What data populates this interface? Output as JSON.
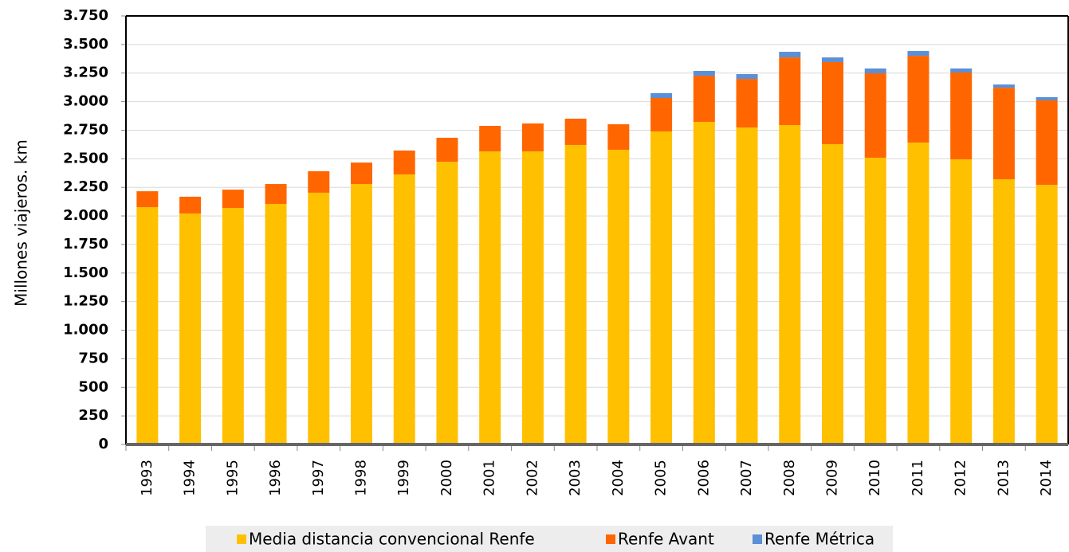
{
  "chart_data": {
    "type": "stacked_bar",
    "y_label": "Millones viajeros. km",
    "categories": [
      "1993",
      "1994",
      "1995",
      "1996",
      "1997",
      "1998",
      "1999",
      "2000",
      "2001",
      "2002",
      "2003",
      "2004",
      "2005",
      "2006",
      "2007",
      "2008",
      "2009",
      "2010",
      "2011",
      "2012",
      "2013",
      "2014"
    ],
    "series": [
      {
        "name": "Media distancia convencional Renfe",
        "color": "#ffc000",
        "values": [
          2077,
          2021,
          2070,
          2105,
          2203,
          2279,
          2363,
          2474,
          2565,
          2565,
          2621,
          2579,
          2739,
          2823,
          2774,
          2795,
          2628,
          2509,
          2642,
          2495,
          2321,
          2272
        ]
      },
      {
        "name": "Renfe Avant",
        "color": "#ff6600",
        "values": [
          139,
          147,
          160,
          174,
          188,
          188,
          209,
          210,
          223,
          244,
          230,
          223,
          293,
          404,
          425,
          592,
          718,
          739,
          759,
          760,
          801,
          739
        ]
      },
      {
        "name": "Renfe Métrica",
        "color": "#5b8fd6",
        "values": [
          0,
          0,
          0,
          0,
          0,
          0,
          0,
          0,
          0,
          0,
          0,
          0,
          42,
          42,
          42,
          49,
          41,
          42,
          42,
          35,
          28,
          28
        ]
      }
    ],
    "ylim": [
      0,
      3750
    ],
    "yticks": [
      0,
      250,
      500,
      750,
      {
        "value": 1000,
        "label": "1.000"
      },
      {
        "value": 1250,
        "label": "1.250"
      },
      {
        "value": 1500,
        "label": "1.500"
      },
      {
        "value": 1750,
        "label": "1.750"
      },
      {
        "value": 2000,
        "label": "2.000"
      },
      {
        "value": 2250,
        "label": "2.250"
      },
      {
        "value": 2500,
        "label": "2.500"
      },
      {
        "value": 2750,
        "label": "2.750"
      },
      {
        "value": 3000,
        "label": "3.000"
      },
      {
        "value": 3250,
        "label": "3.250"
      },
      {
        "value": 3500,
        "label": "3.500"
      },
      {
        "value": 3750,
        "label": "3.750"
      }
    ],
    "grid": true,
    "legend": "bottom"
  }
}
